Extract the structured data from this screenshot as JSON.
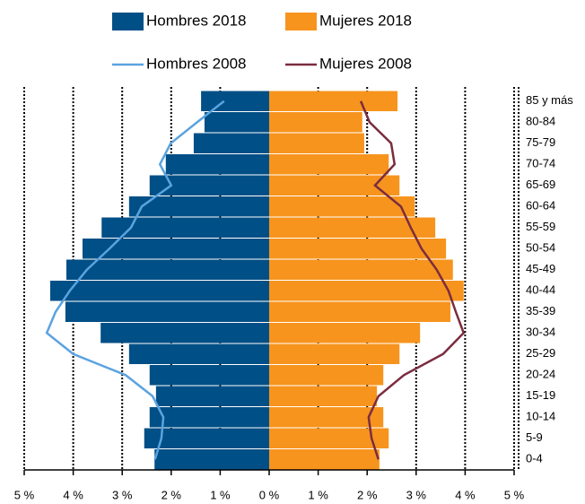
{
  "chart_data": {
    "type": "pyramid",
    "categories": [
      "0-4",
      "5-9",
      "10-14",
      "15-19",
      "20-24",
      "25-29",
      "30-34",
      "35-39",
      "40-44",
      "45-49",
      "50-54",
      "55-59",
      "60-64",
      "65-69",
      "70-74",
      "75-79",
      "80-84",
      "85 y más"
    ],
    "series": [
      {
        "name": "Hombres 2018",
        "kind": "bar",
        "color": "#004f86",
        "values": [
          -2.34,
          -2.55,
          -2.44,
          -2.31,
          -2.44,
          -2.86,
          -3.44,
          -4.16,
          -4.47,
          -4.14,
          -3.81,
          -3.42,
          -2.86,
          -2.44,
          -2.11,
          -1.54,
          -1.32,
          -1.39
        ]
      },
      {
        "name": "Mujeres 2018",
        "kind": "bar",
        "color": "#f7941d",
        "values": [
          2.25,
          2.44,
          2.33,
          2.2,
          2.33,
          2.66,
          3.08,
          3.7,
          3.97,
          3.75,
          3.61,
          3.39,
          2.97,
          2.66,
          2.44,
          1.94,
          1.9,
          2.62
        ]
      },
      {
        "name": "Hombres 2008",
        "kind": "line",
        "color": "#5ba3e0",
        "values": [
          -2.33,
          -2.2,
          -2.16,
          -2.38,
          -2.93,
          -4.0,
          -4.54,
          -4.36,
          -4.07,
          -3.72,
          -3.26,
          -2.82,
          -2.6,
          -2.0,
          -2.23,
          -2.01,
          -1.47,
          -0.92
        ]
      },
      {
        "name": "Mujeres 2008",
        "kind": "line",
        "color": "#7b2c3f",
        "values": [
          2.23,
          2.09,
          2.03,
          2.23,
          2.75,
          3.55,
          3.97,
          3.81,
          3.66,
          3.42,
          3.11,
          2.89,
          2.69,
          2.16,
          2.56,
          2.49,
          2.05,
          1.87
        ]
      }
    ],
    "xlim": [
      -5,
      5
    ],
    "xticks": [
      {
        "value": -5,
        "label": "5 %"
      },
      {
        "value": -4,
        "label": "4 %"
      },
      {
        "value": -3,
        "label": "3 %"
      },
      {
        "value": -2,
        "label": "2 %"
      },
      {
        "value": -1,
        "label": "1 %"
      },
      {
        "value": 0,
        "label": "0 %"
      },
      {
        "value": 1,
        "label": "1 %"
      },
      {
        "value": 2,
        "label": "2 %"
      },
      {
        "value": 3,
        "label": "3 %"
      },
      {
        "value": 4,
        "label": "4 %"
      },
      {
        "value": 5,
        "label": "5 %"
      }
    ],
    "grid": true
  }
}
